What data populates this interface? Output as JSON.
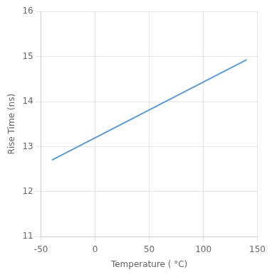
{
  "chart_data": {
    "type": "line",
    "x": [
      -40,
      140
    ],
    "values": [
      12.7,
      14.93
    ],
    "color": "#5b9bd5",
    "xlabel": "Temperature ( °C)",
    "ylabel": "Rise Time (ns)",
    "xlim": [
      -50,
      150
    ],
    "ylim": [
      11,
      16
    ],
    "xticks": [
      -50,
      0,
      50,
      100,
      150
    ],
    "yticks": [
      11,
      12,
      13,
      14,
      15,
      16
    ],
    "grid": true
  }
}
